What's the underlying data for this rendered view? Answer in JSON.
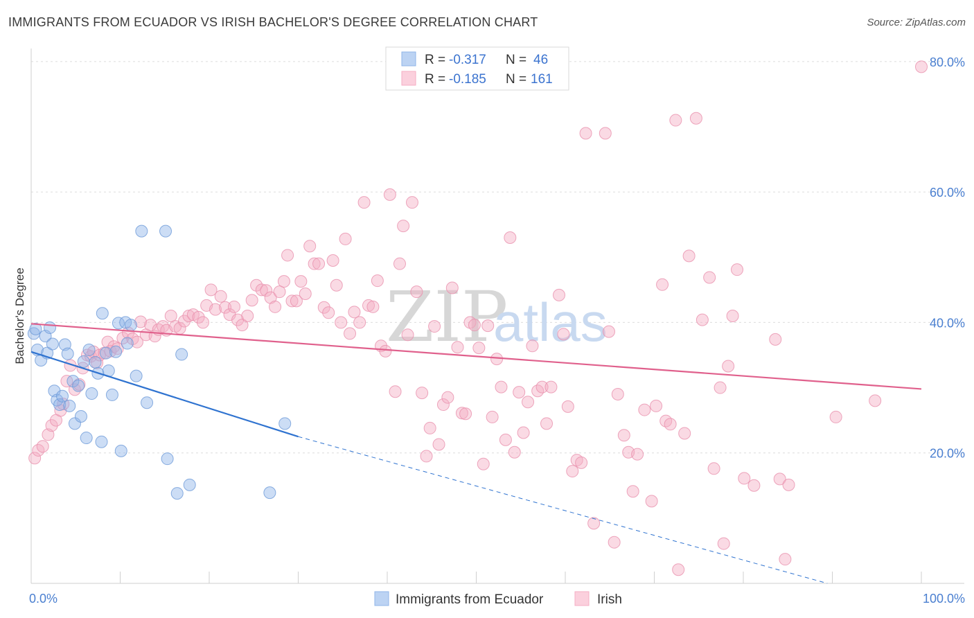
{
  "title": "IMMIGRANTS FROM ECUADOR VS IRISH BACHELOR'S DEGREE CORRELATION CHART",
  "source": "Source: ZipAtlas.com",
  "watermark": {
    "zip": "ZIP",
    "atlas": "atlas"
  },
  "chart_data": {
    "type": "scatter",
    "ylabel": "Bachelor's Degree",
    "xlim": [
      0,
      100
    ],
    "ylim": [
      0,
      82
    ],
    "x_tick_labels": [
      {
        "value": 0,
        "label": "0.0%"
      },
      {
        "value": 100,
        "label": "100.0%"
      }
    ],
    "y_tick_labels": [
      {
        "value": 20,
        "label": "20.0%"
      },
      {
        "value": 40,
        "label": "40.0%"
      },
      {
        "value": 60,
        "label": "60.0%"
      },
      {
        "value": 80,
        "label": "80.0%"
      }
    ],
    "grid": "horizontal dashed",
    "legend": [
      {
        "series": "Immigrants from Ecuador",
        "r_label": "R = ",
        "r_value": "-0.317",
        "n_label": "N = ",
        "n_value": "46",
        "color": "#8fb4e8",
        "edge": "#6d9ad8"
      },
      {
        "series": "Irish",
        "r_label": "R = ",
        "r_value": "-0.185",
        "n_label": "N = ",
        "n_value": "161",
        "color": "#f5aec4",
        "edge": "#e890ad"
      }
    ],
    "series": [
      {
        "name": "Immigrants from Ecuador",
        "color": "#8fb4e8",
        "line_color": "#2f73d0",
        "trend": {
          "x_start": 0,
          "y_start": 35.5,
          "x_end": 30,
          "y_end": 22.5,
          "dash_x_end": 100,
          "dash_y_end": -4
        },
        "points": [
          [
            0.3,
            38.3
          ],
          [
            0.7,
            35.8
          ],
          [
            1.1,
            34.2
          ],
          [
            1.6,
            37.9
          ],
          [
            1.8,
            35.3
          ],
          [
            2.1,
            39.2
          ],
          [
            2.4,
            36.7
          ],
          [
            2.6,
            29.5
          ],
          [
            2.9,
            28.1
          ],
          [
            3.2,
            27.4
          ],
          [
            3.5,
            28.7
          ],
          [
            3.8,
            36.6
          ],
          [
            4.1,
            35.2
          ],
          [
            4.3,
            27.2
          ],
          [
            4.7,
            31.0
          ],
          [
            4.9,
            24.5
          ],
          [
            5.3,
            30.3
          ],
          [
            5.6,
            25.6
          ],
          [
            5.9,
            34.0
          ],
          [
            6.2,
            22.3
          ],
          [
            6.5,
            35.8
          ],
          [
            6.8,
            29.1
          ],
          [
            7.2,
            33.9
          ],
          [
            7.5,
            32.2
          ],
          [
            7.9,
            21.7
          ],
          [
            8.0,
            41.4
          ],
          [
            8.4,
            35.3
          ],
          [
            8.7,
            32.6
          ],
          [
            9.1,
            28.9
          ],
          [
            9.5,
            35.5
          ],
          [
            9.8,
            39.9
          ],
          [
            10.1,
            20.3
          ],
          [
            10.6,
            40.0
          ],
          [
            10.8,
            36.8
          ],
          [
            11.2,
            39.6
          ],
          [
            11.8,
            31.8
          ],
          [
            12.4,
            54.0
          ],
          [
            13.0,
            27.7
          ],
          [
            15.1,
            54.0
          ],
          [
            15.3,
            19.1
          ],
          [
            16.4,
            13.8
          ],
          [
            16.9,
            35.1
          ],
          [
            17.8,
            15.1
          ],
          [
            26.8,
            13.9
          ],
          [
            28.5,
            24.5
          ],
          [
            0.5,
            39.0
          ]
        ]
      },
      {
        "name": "Irish",
        "color": "#f5aec4",
        "line_color": "#e0608c",
        "trend": {
          "x_start": 0,
          "y_start": 39.8,
          "x_end": 100,
          "y_end": 29.8
        },
        "points": [
          [
            0.4,
            19.2
          ],
          [
            0.8,
            20.4
          ],
          [
            1.3,
            21.0
          ],
          [
            1.9,
            22.8
          ],
          [
            2.3,
            24.2
          ],
          [
            2.8,
            25.0
          ],
          [
            3.3,
            26.5
          ],
          [
            3.6,
            27.5
          ],
          [
            4.0,
            31.0
          ],
          [
            4.4,
            33.4
          ],
          [
            4.9,
            29.7
          ],
          [
            5.4,
            30.5
          ],
          [
            5.8,
            33.0
          ],
          [
            6.3,
            35.0
          ],
          [
            6.7,
            34.8
          ],
          [
            7.0,
            35.5
          ],
          [
            7.4,
            33.8
          ],
          [
            7.7,
            35.0
          ],
          [
            8.2,
            35.3
          ],
          [
            8.6,
            37.0
          ],
          [
            8.9,
            35.6
          ],
          [
            9.3,
            36.3
          ],
          [
            9.7,
            36.0
          ],
          [
            10.3,
            37.6
          ],
          [
            10.9,
            38.4
          ],
          [
            11.4,
            37.5
          ],
          [
            11.9,
            37.0
          ],
          [
            12.3,
            40.1
          ],
          [
            12.9,
            38.1
          ],
          [
            13.4,
            39.6
          ],
          [
            13.9,
            37.9
          ],
          [
            14.3,
            38.9
          ],
          [
            14.8,
            39.4
          ],
          [
            15.2,
            38.8
          ],
          [
            15.7,
            41.0
          ],
          [
            16.2,
            39.4
          ],
          [
            16.7,
            39.1
          ],
          [
            17.2,
            40.2
          ],
          [
            17.7,
            41.0
          ],
          [
            18.2,
            41.2
          ],
          [
            18.8,
            40.8
          ],
          [
            19.3,
            40.0
          ],
          [
            19.7,
            42.6
          ],
          [
            20.2,
            45.0
          ],
          [
            20.7,
            42.0
          ],
          [
            21.3,
            44.0
          ],
          [
            21.8,
            42.3
          ],
          [
            22.3,
            41.2
          ],
          [
            22.8,
            42.4
          ],
          [
            23.2,
            40.4
          ],
          [
            23.7,
            39.6
          ],
          [
            24.3,
            41.0
          ],
          [
            24.8,
            43.4
          ],
          [
            25.3,
            45.7
          ],
          [
            25.9,
            45.0
          ],
          [
            26.4,
            44.9
          ],
          [
            26.9,
            43.8
          ],
          [
            27.4,
            42.4
          ],
          [
            27.9,
            44.7
          ],
          [
            28.4,
            46.3
          ],
          [
            28.8,
            50.3
          ],
          [
            29.3,
            43.3
          ],
          [
            29.8,
            43.3
          ],
          [
            30.3,
            46.3
          ],
          [
            30.8,
            44.4
          ],
          [
            31.3,
            51.7
          ],
          [
            31.8,
            49.0
          ],
          [
            32.3,
            49.0
          ],
          [
            32.9,
            42.3
          ],
          [
            33.4,
            41.5
          ],
          [
            33.9,
            49.5
          ],
          [
            34.3,
            45.7
          ],
          [
            34.8,
            40.0
          ],
          [
            35.3,
            52.8
          ],
          [
            35.8,
            38.3
          ],
          [
            36.3,
            41.6
          ],
          [
            36.9,
            40.0
          ],
          [
            37.4,
            58.4
          ],
          [
            37.9,
            42.6
          ],
          [
            38.4,
            42.4
          ],
          [
            38.9,
            46.4
          ],
          [
            39.3,
            36.4
          ],
          [
            39.8,
            35.6
          ],
          [
            40.3,
            59.6
          ],
          [
            40.9,
            29.4
          ],
          [
            41.4,
            49.0
          ],
          [
            41.8,
            54.8
          ],
          [
            42.3,
            38.1
          ],
          [
            42.8,
            58.4
          ],
          [
            43.3,
            44.7
          ],
          [
            43.9,
            29.2
          ],
          [
            44.4,
            19.5
          ],
          [
            44.8,
            23.8
          ],
          [
            45.3,
            39.4
          ],
          [
            45.8,
            21.3
          ],
          [
            46.3,
            27.4
          ],
          [
            46.8,
            28.5
          ],
          [
            47.3,
            45.3
          ],
          [
            47.9,
            36.2
          ],
          [
            48.4,
            26.1
          ],
          [
            48.8,
            26.0
          ],
          [
            49.3,
            40.0
          ],
          [
            49.8,
            39.6
          ],
          [
            50.3,
            36.1
          ],
          [
            50.8,
            18.3
          ],
          [
            51.3,
            39.5
          ],
          [
            51.8,
            25.5
          ],
          [
            52.3,
            34.4
          ],
          [
            52.8,
            30.1
          ],
          [
            53.3,
            22.0
          ],
          [
            53.8,
            53.0
          ],
          [
            54.3,
            20.1
          ],
          [
            54.8,
            29.3
          ],
          [
            55.3,
            23.1
          ],
          [
            55.8,
            27.8
          ],
          [
            56.3,
            36.4
          ],
          [
            56.9,
            29.5
          ],
          [
            57.4,
            30.1
          ],
          [
            57.9,
            24.5
          ],
          [
            58.4,
            30.1
          ],
          [
            59.3,
            44.2
          ],
          [
            59.8,
            38.2
          ],
          [
            60.3,
            27.1
          ],
          [
            60.8,
            17.2
          ],
          [
            61.3,
            18.9
          ],
          [
            61.8,
            18.5
          ],
          [
            62.3,
            69.0
          ],
          [
            63.2,
            9.2
          ],
          [
            64.5,
            69.0
          ],
          [
            64.9,
            38.6
          ],
          [
            65.5,
            6.3
          ],
          [
            65.9,
            29.0
          ],
          [
            66.6,
            22.7
          ],
          [
            67.1,
            20.1
          ],
          [
            67.6,
            14.1
          ],
          [
            68.1,
            19.8
          ],
          [
            68.9,
            26.6
          ],
          [
            69.7,
            12.6
          ],
          [
            70.2,
            27.2
          ],
          [
            70.9,
            45.8
          ],
          [
            71.3,
            24.9
          ],
          [
            71.8,
            24.4
          ],
          [
            72.4,
            71.0
          ],
          [
            72.7,
            2.1
          ],
          [
            73.4,
            23.0
          ],
          [
            73.9,
            50.2
          ],
          [
            74.7,
            71.3
          ],
          [
            75.4,
            40.4
          ],
          [
            76.2,
            46.9
          ],
          [
            76.7,
            17.6
          ],
          [
            77.4,
            30.0
          ],
          [
            77.8,
            6.1
          ],
          [
            78.3,
            33.3
          ],
          [
            78.8,
            41.0
          ],
          [
            79.3,
            48.1
          ],
          [
            80.1,
            16.1
          ],
          [
            81.2,
            15.0
          ],
          [
            84.1,
            16.0
          ],
          [
            85.1,
            15.1
          ],
          [
            84.7,
            3.7
          ],
          [
            83.6,
            37.4
          ],
          [
            90.4,
            25.5
          ],
          [
            94.8,
            28.0
          ],
          [
            100.0,
            79.2
          ]
        ]
      }
    ]
  }
}
